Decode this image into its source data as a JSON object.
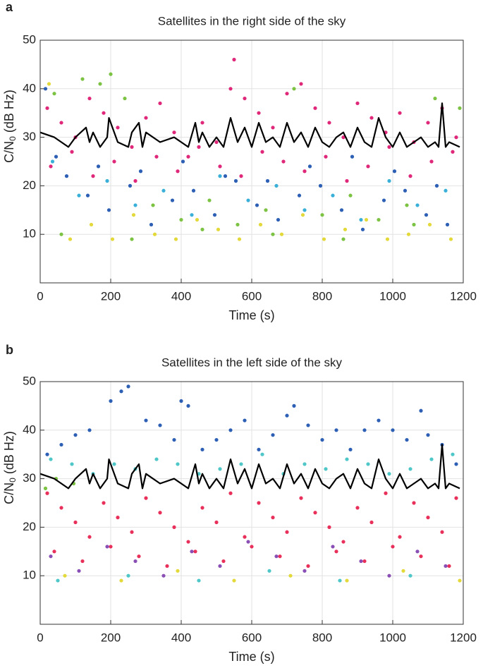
{
  "chart_data": [
    {
      "type": "scatter",
      "panel_label": "a",
      "title": "Satellites in the right side of the sky",
      "xlabel": "Time (s)",
      "ylabel": {
        "main": "C/N",
        "sub": "0",
        "rest": " (dB Hz)"
      },
      "xlim": [
        0,
        1200
      ],
      "ylim": [
        0,
        50
      ],
      "xticks": [
        0,
        200,
        400,
        600,
        800,
        1000,
        1200
      ],
      "yticks": [
        10,
        20,
        30,
        40,
        50
      ],
      "grid": true,
      "series": [
        {
          "color": "#e0287a",
          "x": [
            20,
            60,
            100,
            140,
            180,
            220,
            260,
            300,
            340,
            380,
            420,
            460,
            500,
            540,
            550,
            580,
            620,
            660,
            700,
            740,
            780,
            820,
            860,
            900,
            940,
            980,
            1020,
            1060,
            1100,
            1140,
            1180,
            30,
            90,
            150,
            210,
            270,
            330,
            390,
            450,
            510,
            570,
            630,
            690,
            750,
            810,
            870,
            930,
            990,
            1050,
            1110,
            1170
          ],
          "values": [
            36,
            33,
            30,
            38,
            35,
            32,
            28,
            34,
            37,
            31,
            26,
            33,
            29,
            40,
            46,
            38,
            35,
            32,
            39,
            41,
            36,
            33,
            30,
            37,
            34,
            31,
            35,
            29,
            33,
            36,
            30,
            24,
            27,
            22,
            25,
            21,
            26,
            23,
            28,
            24,
            22,
            27,
            25,
            23,
            26,
            21,
            24,
            28,
            22,
            25,
            27
          ]
        },
        {
          "color": "#2d5fb5",
          "x": [
            15,
            75,
            135,
            195,
            255,
            315,
            375,
            435,
            495,
            555,
            615,
            675,
            735,
            795,
            855,
            915,
            975,
            1035,
            1095,
            1155,
            45,
            165,
            285,
            405,
            525,
            645,
            765,
            885,
            1005,
            1125
          ],
          "values": [
            40,
            22,
            18,
            15,
            20,
            12,
            17,
            19,
            14,
            21,
            16,
            13,
            18,
            20,
            15,
            11,
            17,
            19,
            14,
            12,
            26,
            24,
            23,
            25,
            22,
            21,
            24,
            26,
            23,
            20
          ]
        },
        {
          "color": "#7cc243",
          "x": [
            40,
            120,
            170,
            200,
            240,
            320,
            400,
            480,
            560,
            640,
            720,
            800,
            880,
            960,
            1040,
            1120,
            1190,
            60,
            260,
            460,
            660,
            860,
            1060
          ],
          "values": [
            39,
            42,
            41,
            43,
            38,
            16,
            13,
            17,
            12,
            15,
            40,
            14,
            18,
            13,
            16,
            38,
            36,
            10,
            9,
            11,
            10,
            9,
            12
          ]
        },
        {
          "color": "#e3d93a",
          "x": [
            25,
            85,
            145,
            205,
            265,
            325,
            385,
            445,
            505,
            565,
            625,
            685,
            745,
            805,
            865,
            925,
            985,
            1045,
            1105,
            1165
          ],
          "values": [
            41,
            9,
            12,
            9,
            14,
            10,
            9,
            13,
            11,
            9,
            12,
            10,
            14,
            9,
            11,
            13,
            9,
            10,
            12,
            9
          ]
        },
        {
          "color": "#3ab0d8",
          "x": [
            35,
            110,
            190,
            270,
            350,
            430,
            510,
            590,
            670,
            750,
            830,
            910,
            990,
            1070,
            1150
          ],
          "values": [
            25,
            18,
            21,
            16,
            19,
            14,
            22,
            17,
            20,
            15,
            18,
            13,
            21,
            16,
            19
          ]
        },
        {
          "color": "#000000",
          "mode": "line",
          "x": [
            0,
            40,
            80,
            100,
            130,
            140,
            150,
            170,
            190,
            195,
            220,
            250,
            260,
            280,
            290,
            300,
            340,
            380,
            420,
            440,
            450,
            460,
            480,
            500,
            520,
            540,
            560,
            580,
            600,
            620,
            640,
            660,
            680,
            700,
            720,
            740,
            760,
            780,
            800,
            820,
            840,
            860,
            880,
            900,
            920,
            940,
            960,
            980,
            1000,
            1020,
            1040,
            1060,
            1080,
            1100,
            1120,
            1130,
            1140,
            1150,
            1160,
            1190
          ],
          "values": [
            31,
            30,
            28,
            30,
            32,
            29,
            31,
            28,
            30,
            34,
            29,
            28,
            31,
            33,
            28,
            31,
            29,
            30,
            28,
            33,
            29,
            31,
            28,
            30,
            28,
            34,
            29,
            32,
            28,
            33,
            29,
            30,
            28,
            33,
            29,
            31,
            28,
            32,
            29,
            28,
            30,
            31,
            28,
            32,
            29,
            28,
            34,
            30,
            28,
            31,
            28,
            29,
            30,
            28,
            29,
            28,
            37,
            28,
            29,
            28
          ]
        }
      ]
    },
    {
      "type": "scatter",
      "panel_label": "b",
      "title": "Satellites in the left side of the sky",
      "xlabel": "Time (s)",
      "ylabel": {
        "main": "C/N",
        "sub": "0",
        "rest": " (dB Hz)"
      },
      "xlim": [
        0,
        1200
      ],
      "ylim": [
        0,
        50
      ],
      "xticks": [
        0,
        200,
        400,
        600,
        800,
        1000,
        1200
      ],
      "yticks": [
        10,
        20,
        30,
        40,
        50
      ],
      "grid": true,
      "series": [
        {
          "color": "#2d5fb5",
          "x": [
            20,
            60,
            100,
            140,
            200,
            230,
            250,
            300,
            340,
            380,
            400,
            420,
            460,
            500,
            540,
            580,
            620,
            660,
            700,
            720,
            760,
            800,
            840,
            880,
            920,
            960,
            1000,
            1040,
            1080,
            1100,
            1140,
            1180
          ],
          "values": [
            35,
            37,
            39,
            40,
            46,
            48,
            49,
            42,
            41,
            38,
            46,
            45,
            36,
            38,
            40,
            42,
            36,
            39,
            43,
            45,
            41,
            38,
            40,
            36,
            40,
            42,
            40,
            38,
            44,
            39,
            37,
            33
          ]
        },
        {
          "color": "#4fc7c8",
          "x": [
            30,
            90,
            150,
            210,
            270,
            330,
            390,
            450,
            510,
            570,
            630,
            690,
            750,
            810,
            870,
            930,
            990,
            1050,
            1110,
            1170,
            50,
            250,
            450,
            650,
            850,
            1050
          ],
          "values": [
            34,
            33,
            31,
            33,
            32,
            34,
            33,
            31,
            32,
            33,
            35,
            31,
            33,
            32,
            34,
            33,
            31,
            32,
            34,
            35,
            9,
            10,
            9,
            11,
            9,
            10
          ]
        },
        {
          "color": "#e8305a",
          "x": [
            20,
            60,
            100,
            140,
            180,
            220,
            260,
            300,
            340,
            380,
            420,
            460,
            500,
            540,
            580,
            620,
            660,
            700,
            740,
            780,
            820,
            860,
            900,
            940,
            980,
            1020,
            1060,
            1100,
            1140,
            1180,
            40,
            120,
            200,
            280,
            360,
            440,
            520,
            600,
            680,
            760,
            840,
            920,
            1000,
            1080,
            1160
          ],
          "values": [
            27,
            24,
            21,
            18,
            25,
            22,
            19,
            26,
            23,
            20,
            17,
            24,
            21,
            27,
            18,
            25,
            22,
            19,
            26,
            23,
            20,
            17,
            24,
            21,
            27,
            18,
            25,
            22,
            19,
            26,
            15,
            13,
            16,
            14,
            12,
            15,
            13,
            16,
            14,
            12,
            15,
            13,
            16,
            14,
            12
          ]
        },
        {
          "color": "#8a4fb5",
          "x": [
            30,
            110,
            190,
            270,
            350,
            430,
            510,
            590,
            670,
            750,
            830,
            910,
            990,
            1070,
            1150
          ],
          "values": [
            14,
            11,
            16,
            13,
            10,
            15,
            12,
            17,
            14,
            11,
            16,
            13,
            10,
            15,
            12
          ]
        },
        {
          "color": "#e3d93a",
          "x": [
            70,
            230,
            390,
            550,
            710,
            870,
            1030,
            1190
          ],
          "values": [
            10,
            9,
            11,
            9,
            10,
            9,
            11,
            9
          ]
        },
        {
          "color": "#7cc243",
          "x": [
            15,
            45,
            95
          ],
          "values": [
            28,
            30,
            29
          ]
        },
        {
          "color": "#000000",
          "mode": "line",
          "x": [
            0,
            40,
            80,
            100,
            130,
            140,
            150,
            170,
            190,
            195,
            220,
            250,
            260,
            280,
            290,
            300,
            340,
            380,
            420,
            440,
            450,
            460,
            480,
            500,
            520,
            540,
            560,
            580,
            600,
            620,
            640,
            660,
            680,
            700,
            720,
            740,
            760,
            780,
            800,
            820,
            840,
            860,
            880,
            900,
            920,
            940,
            960,
            980,
            1000,
            1020,
            1040,
            1060,
            1080,
            1100,
            1120,
            1130,
            1140,
            1150,
            1160,
            1190
          ],
          "values": [
            31,
            30,
            28,
            30,
            32,
            29,
            31,
            28,
            30,
            34,
            29,
            28,
            31,
            33,
            28,
            31,
            29,
            30,
            28,
            33,
            29,
            31,
            28,
            30,
            28,
            34,
            29,
            32,
            28,
            33,
            29,
            30,
            28,
            33,
            29,
            31,
            28,
            32,
            29,
            28,
            30,
            31,
            28,
            32,
            29,
            28,
            34,
            30,
            28,
            31,
            28,
            29,
            30,
            28,
            29,
            28,
            37,
            28,
            29,
            28
          ]
        }
      ]
    }
  ]
}
